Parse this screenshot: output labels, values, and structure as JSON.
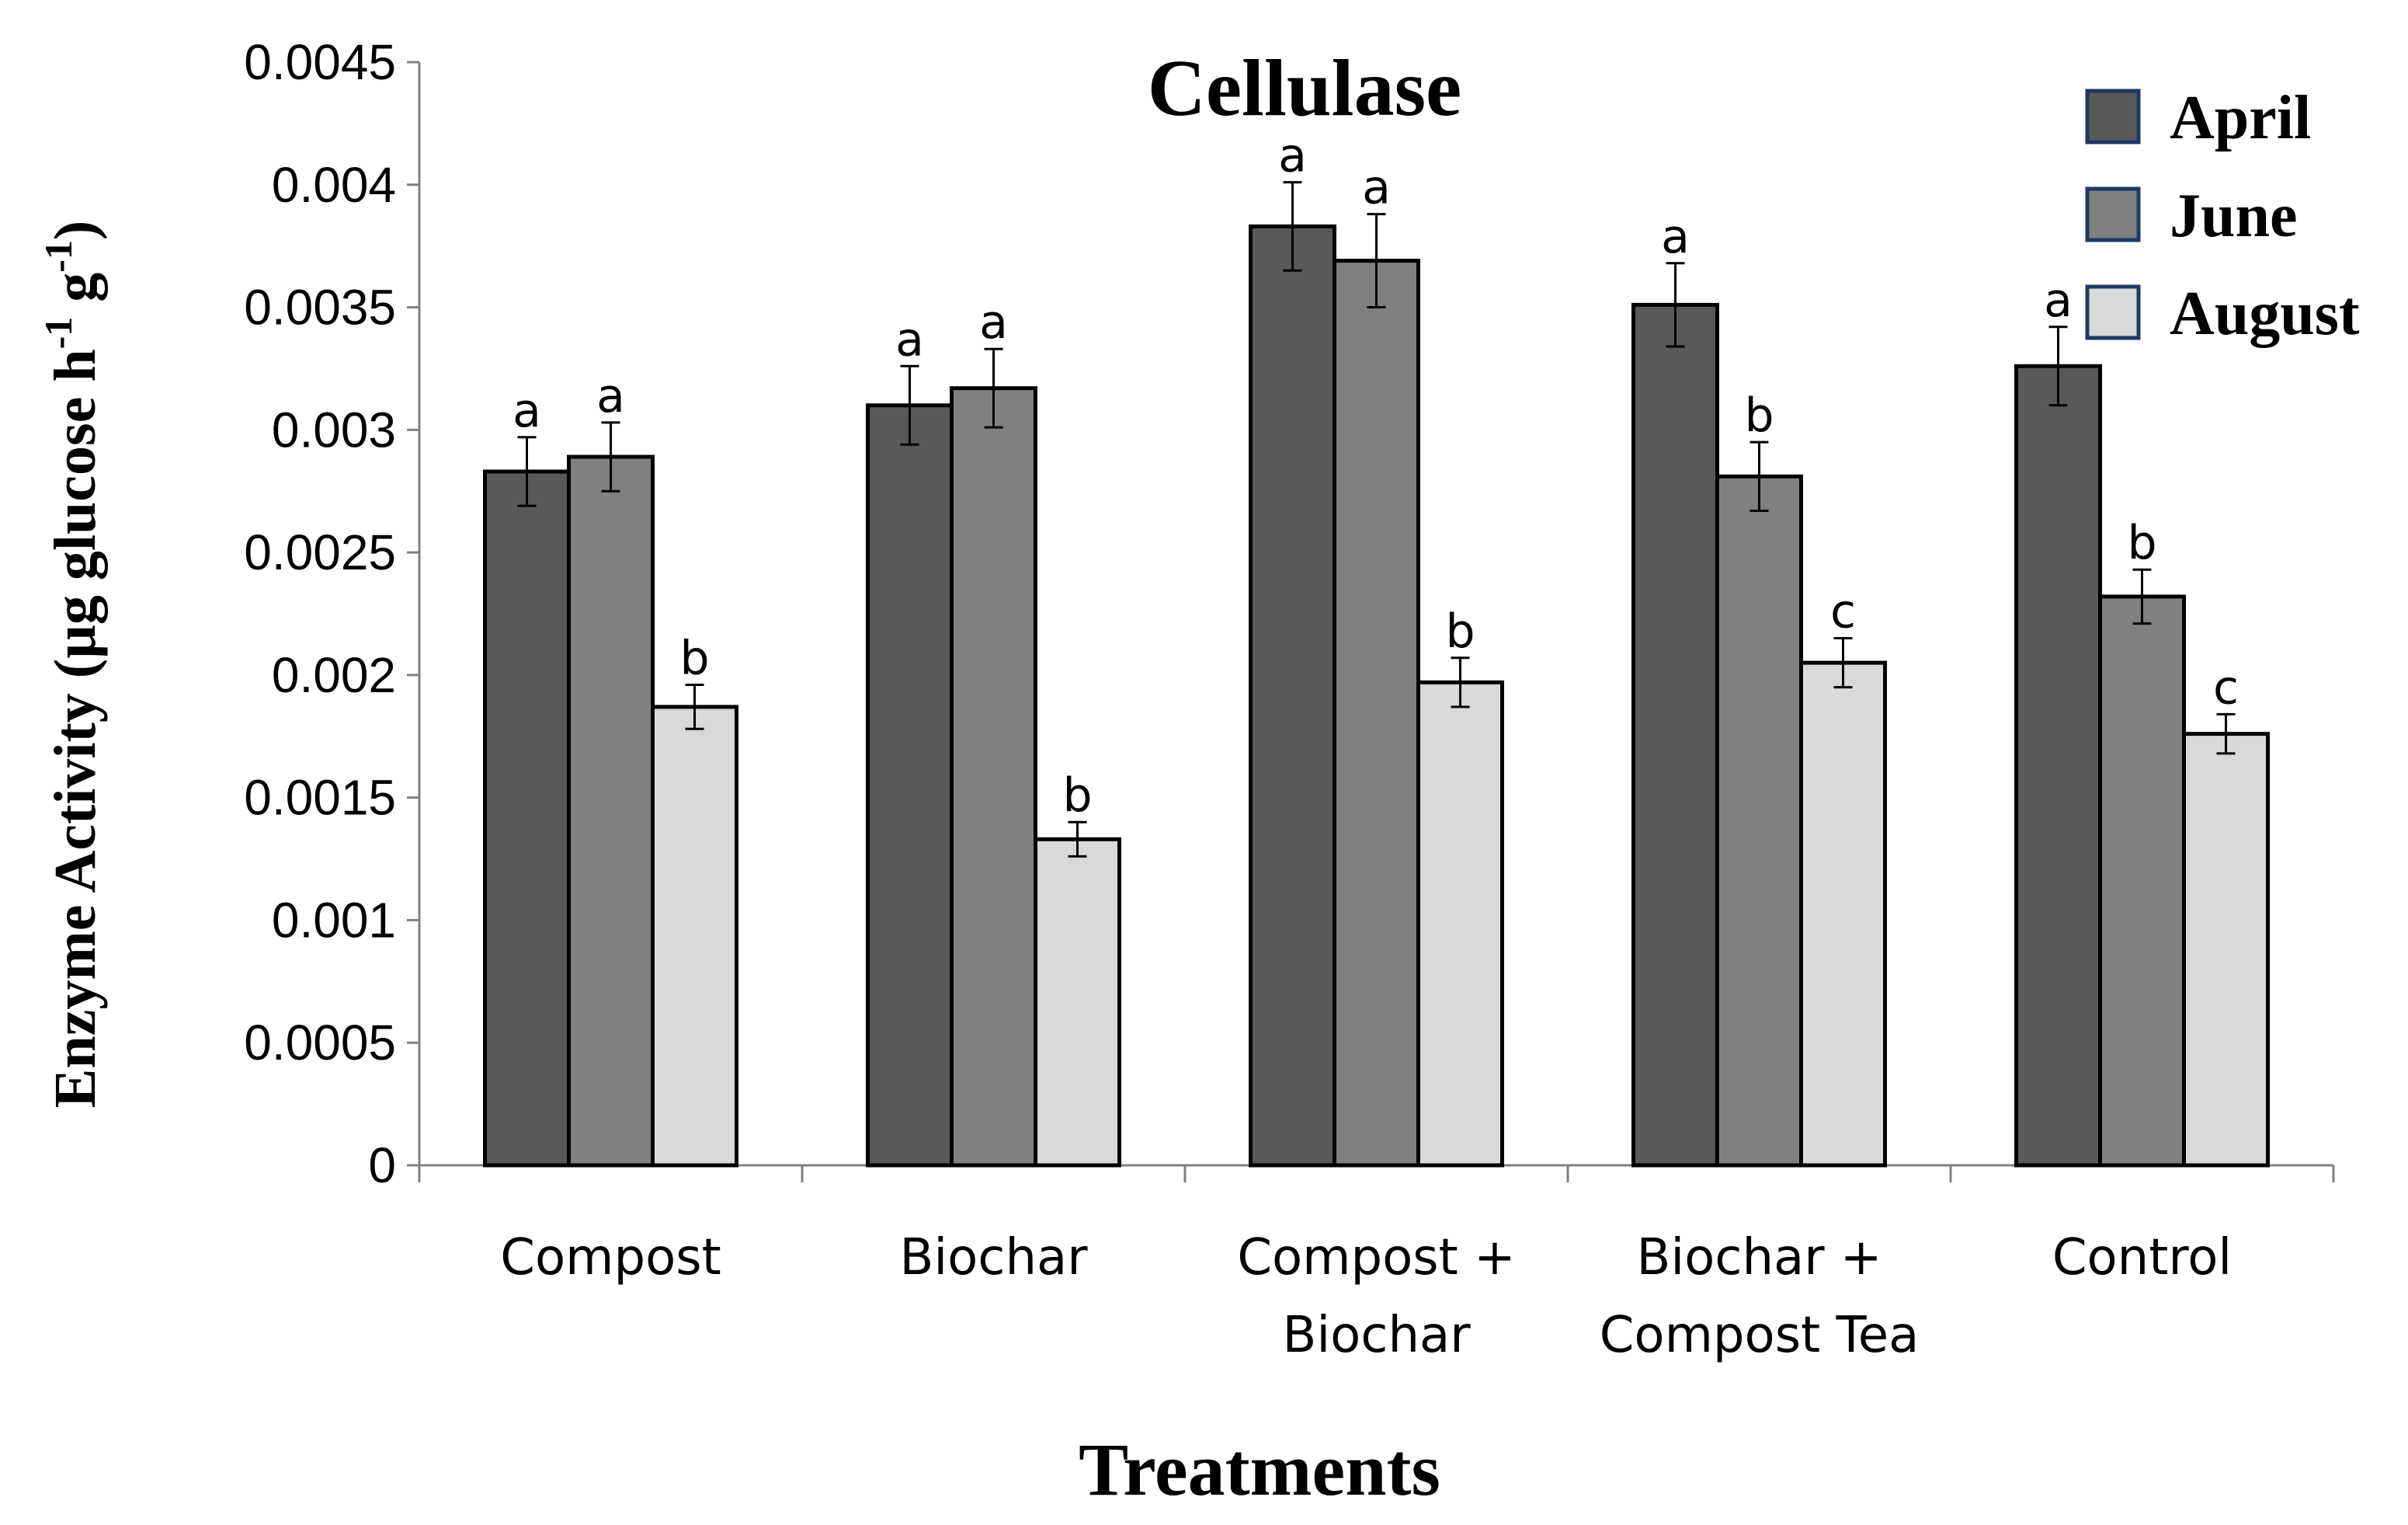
{
  "chart_data": {
    "type": "bar",
    "title": "Cellulase",
    "xlabel": "Treatments",
    "ylabel": {
      "prefix": "Enzyme Activity (µg  glucose h",
      "sup1": "-1",
      "mid": " g",
      "sup2": "-1",
      "suffix": ")"
    },
    "ylim": [
      0,
      0.0045
    ],
    "yticks": [
      {
        "value": 0,
        "label": "0"
      },
      {
        "value": 0.0005,
        "label": "0.0005"
      },
      {
        "value": 0.001,
        "label": "0.001"
      },
      {
        "value": 0.0015,
        "label": "0.0015"
      },
      {
        "value": 0.002,
        "label": "0.002"
      },
      {
        "value": 0.0025,
        "label": "0.0025"
      },
      {
        "value": 0.003,
        "label": "0.003"
      },
      {
        "value": 0.0035,
        "label": "0.0035"
      },
      {
        "value": 0.004,
        "label": "0.004"
      },
      {
        "value": 0.0045,
        "label": "0.0045"
      }
    ],
    "categories": [
      [
        "Compost"
      ],
      [
        "Biochar"
      ],
      [
        "Compost +",
        "Biochar"
      ],
      [
        "Biochar +",
        "Compost Tea"
      ],
      [
        "Control"
      ]
    ],
    "series": [
      {
        "name": "April",
        "color": "#595959",
        "values": [
          0.00283,
          0.0031,
          0.00383,
          0.00351,
          0.00326
        ],
        "errors": [
          0.00014,
          0.00016,
          0.00018,
          0.00017,
          0.00016
        ],
        "letters": [
          "a",
          "a",
          "a",
          "a",
          "a"
        ]
      },
      {
        "name": "June",
        "color": "#808080",
        "values": [
          0.00289,
          0.00317,
          0.00369,
          0.00281,
          0.00232
        ],
        "errors": [
          0.00014,
          0.00016,
          0.00019,
          0.00014,
          0.00011
        ],
        "letters": [
          "a",
          "a",
          "a",
          "b",
          "b"
        ]
      },
      {
        "name": "August",
        "color": "#d9d9d9",
        "values": [
          0.00187,
          0.00133,
          0.00197,
          0.00205,
          0.00176
        ],
        "errors": [
          9e-05,
          7e-05,
          0.0001,
          0.0001,
          8e-05
        ],
        "letters": [
          "b",
          "b",
          "b",
          "c",
          "c"
        ]
      }
    ],
    "legend_position": "top-right",
    "grid": false
  }
}
